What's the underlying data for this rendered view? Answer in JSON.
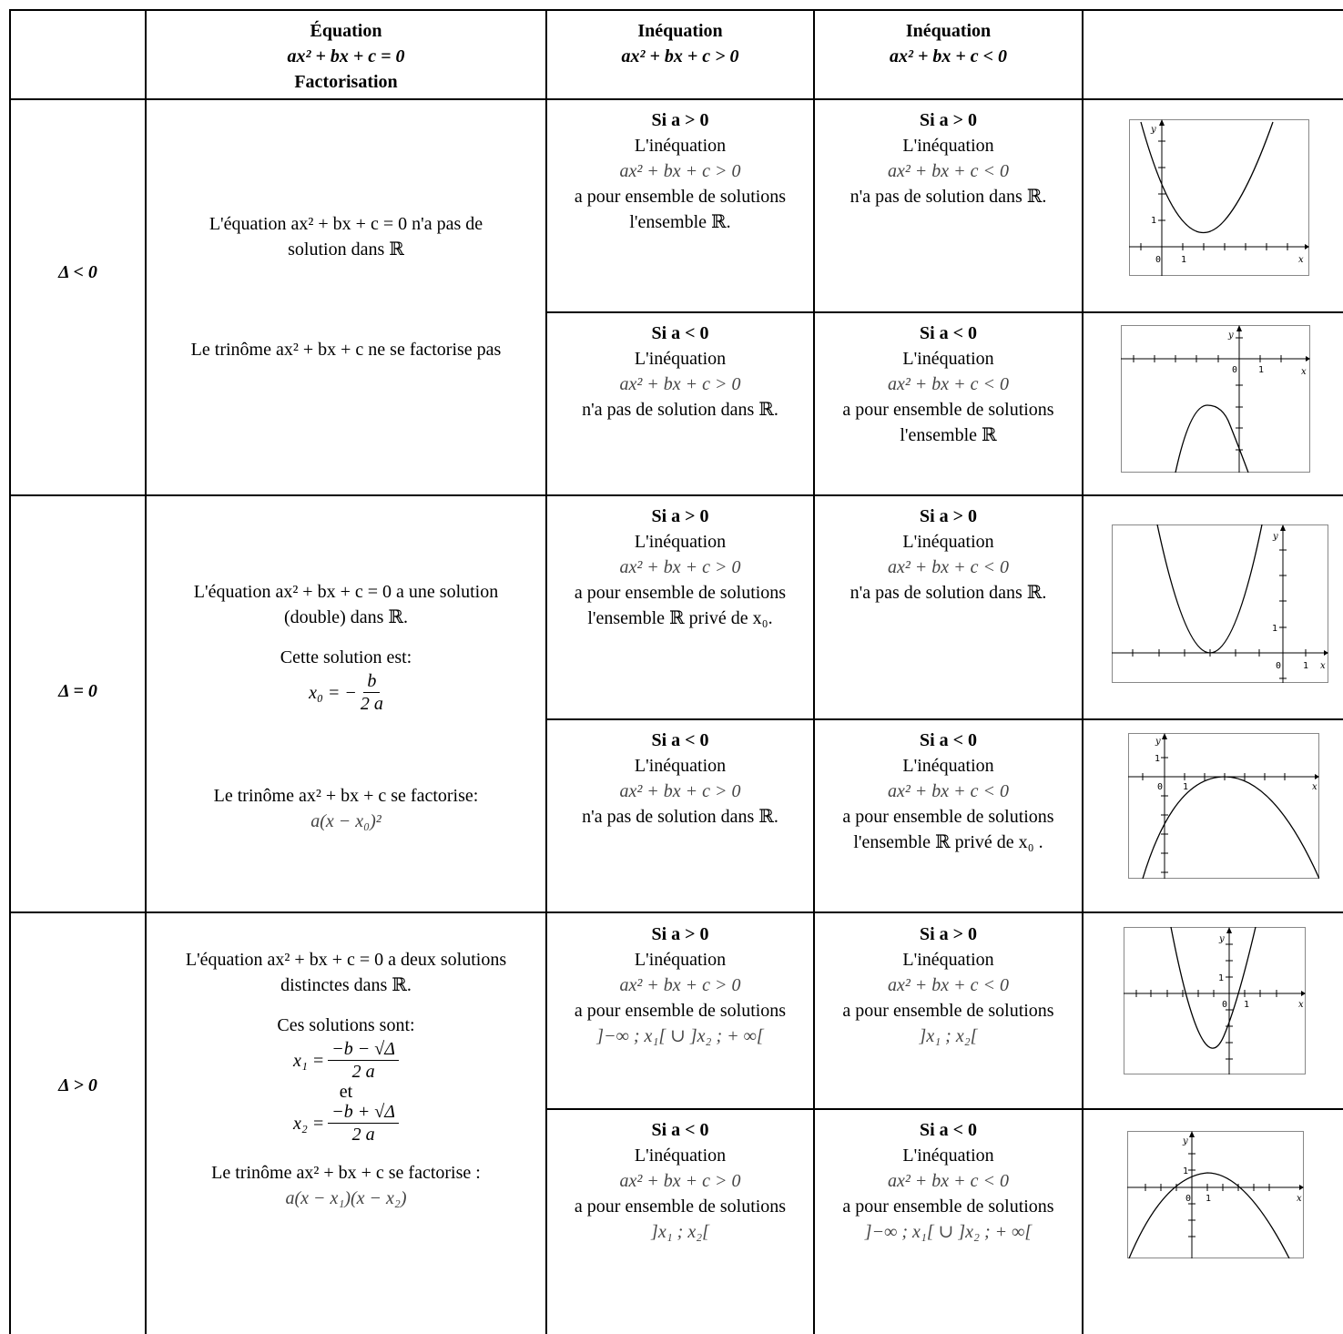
{
  "header": {
    "col1": [
      "Équation",
      "ax² + bx + c = 0",
      "Factorisation"
    ],
    "col2": [
      "Inéquation",
      "ax² + bx + c > 0"
    ],
    "col3": [
      "Inéquation",
      "ax² + bx + c < 0"
    ]
  },
  "rows": [
    {
      "delta_label": "Δ < 0",
      "equation": [
        "L'équation  ax² + bx + c = 0  n'a pas de",
        "solution dans ℝ"
      ],
      "factorisation": "Le trinôme ax² + bx + c  ne se factorise pas",
      "cases": [
        {
          "gt": [
            "Si  a > 0",
            "L'inéquation",
            "ax² + bx + c > 0",
            "a pour ensemble de solutions",
            "l'ensemble ℝ."
          ],
          "lt": [
            "Si  a > 0",
            "L'inéquation",
            "ax² + bx + c < 0",
            "n'a pas de solution dans  ℝ."
          ],
          "graph": {
            "origin_label": "0",
            "x_label": "x",
            "y_label": "y",
            "unit_label": "1"
          }
        },
        {
          "gt": [
            "Si  a < 0",
            "L'inéquation",
            "ax² + bx + c > 0",
            "n'a pas de solution dans ℝ."
          ],
          "lt": [
            "Si  a < 0",
            "L'inéquation",
            "ax² + bx + c < 0",
            "a pour ensemble de solutions",
            "l'ensemble  ℝ"
          ],
          "graph": {
            "origin_label": "0",
            "x_label": "x",
            "y_label": "y",
            "unit_label": "1"
          }
        }
      ]
    },
    {
      "delta_label": "Δ = 0",
      "equation": [
        "L'équation ax² + bx + c = 0 a une solution",
        "(double) dans ℝ."
      ],
      "solution_intro": "Cette solution est:",
      "x0_lhs": "x₀ = −",
      "x0_num": "b",
      "x0_den": "2 a",
      "factorisation": [
        "Le trinôme ax² + bx + c  se factorise:",
        "a(x − x₀)²"
      ],
      "cases": [
        {
          "gt": [
            "Si  a > 0",
            "L'inéquation",
            "ax² + bx + c > 0",
            "a pour ensemble de solutions",
            "l'ensemble ℝ  privé de  x₀."
          ],
          "lt": [
            "Si  a > 0",
            "L'inéquation",
            "ax² + bx + c < 0",
            "n'a pas de solution dans ℝ."
          ],
          "graph": {
            "origin_label": "0",
            "x_label": "x",
            "y_label": "y",
            "unit_label": "1"
          }
        },
        {
          "gt": [
            "Si  a < 0",
            "L'inéquation",
            "ax² + bx + c > 0",
            "n'a pas de solution dans ℝ."
          ],
          "lt": [
            "Si  a < 0",
            "L'inéquation",
            "ax² + bx + c < 0",
            "a pour ensemble de solutions",
            "l'ensemble ℝ  privé de  x₀ ."
          ],
          "graph": {
            "origin_label": "0",
            "x_label": "x",
            "y_label": "y",
            "unit_label": "1"
          }
        }
      ]
    },
    {
      "delta_label": "Δ > 0",
      "equation": [
        "L'équation ax² + bx + c = 0 a deux solutions",
        "distinctes dans ℝ."
      ],
      "solution_intro": "Ces solutions sont:",
      "x1_lhs": "x₁ =",
      "x1_num": "−b − √Δ",
      "x1_den": "2 a",
      "and": "et",
      "x2_lhs": "x₂ =",
      "x2_num": "−b + √Δ",
      "x2_den": "2 a",
      "factorisation": [
        "Le trinôme ax² + bx + c se factorise :",
        "a(x − x₁)(x − x₂)"
      ],
      "cases": [
        {
          "gt": [
            "Si  a > 0",
            "L'inéquation",
            "ax² + bx + c > 0",
            "a pour ensemble de solutions",
            "]−∞ ; x₁[ ∪ ]x₂ ; + ∞["
          ],
          "lt": [
            "Si  a > 0",
            "L'inéquation",
            "ax² + bx + c < 0",
            "a pour ensemble de solutions",
            "]x₁ ; x₂["
          ],
          "graph": {
            "origin_label": "0",
            "x_label": "x",
            "y_label": "y",
            "unit_label": "1"
          }
        },
        {
          "gt": [
            "Si  a < 0",
            "L'inéquation",
            "ax² + bx + c > 0",
            "a pour ensemble de solutions",
            "]x₁ ; x₂["
          ],
          "lt": [
            "Si  a < 0",
            "L'inéquation",
            "ax² + bx + c < 0",
            "a pour ensemble de solutions",
            "]−∞ ; x₁[ ∪ ]x₂ ; + ∞["
          ],
          "graph": {
            "origin_label": "0",
            "x_label": "x",
            "y_label": "y",
            "unit_label": "1"
          }
        }
      ]
    }
  ]
}
